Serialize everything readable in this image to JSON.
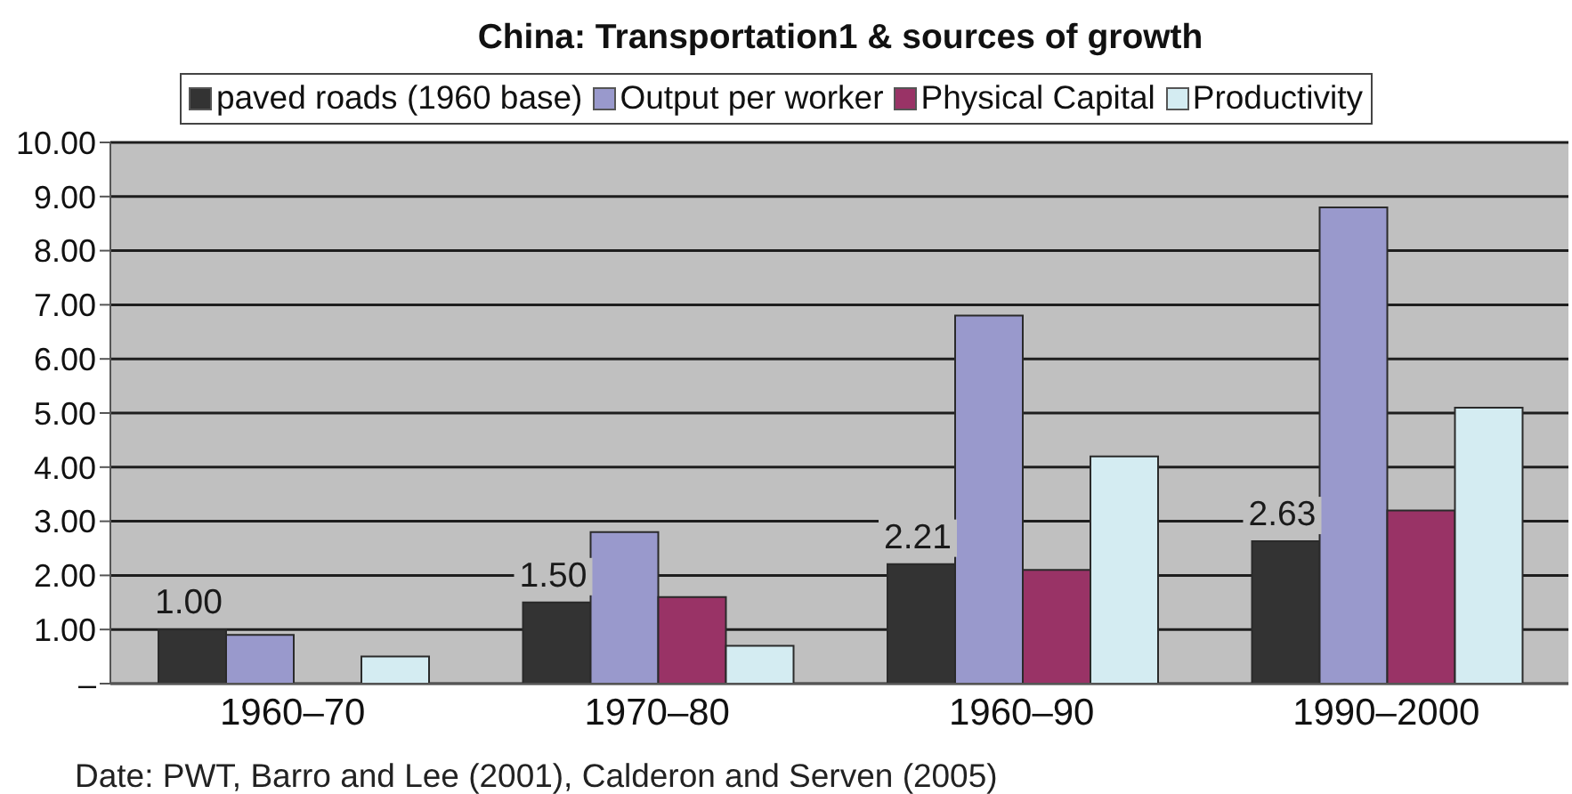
{
  "chart_data": {
    "type": "bar",
    "title": "China: Transportation1 & sources of growth",
    "categories": [
      "1960–70",
      "1970–80",
      "1960–90",
      "1990–2000"
    ],
    "series": [
      {
        "name": "paved roads (1960 base)",
        "color": "#333333",
        "values": [
          1.0,
          1.5,
          2.21,
          2.63
        ],
        "value_labels": [
          "1.00",
          "1.50",
          "2.21",
          "2.63"
        ]
      },
      {
        "name": "Output per worker",
        "color": "#9999cc",
        "values": [
          0.9,
          2.8,
          6.8,
          8.8
        ]
      },
      {
        "name": "Physical Capital",
        "color": "#993366",
        "values": [
          null,
          1.6,
          2.1,
          3.2
        ]
      },
      {
        "name": "Productivity",
        "color": "#d4ecf2",
        "values": [
          0.5,
          0.7,
          4.2,
          5.1
        ]
      }
    ],
    "ylim": [
      0,
      10
    ],
    "yticks": [
      {
        "value": 0,
        "label": "–"
      },
      {
        "value": 1,
        "label": "1.00"
      },
      {
        "value": 2,
        "label": "2.00"
      },
      {
        "value": 3,
        "label": "3.00"
      },
      {
        "value": 4,
        "label": "4.00"
      },
      {
        "value": 5,
        "label": "5.00"
      },
      {
        "value": 6,
        "label": "6.00"
      },
      {
        "value": 7,
        "label": "7.00"
      },
      {
        "value": 8,
        "label": "8.00"
      },
      {
        "value": 9,
        "label": "9.00"
      },
      {
        "value": 10,
        "label": "10.00"
      }
    ],
    "grid": "y",
    "legend": "top",
    "annotations": [
      "Date: PWT, Barro and Lee (2001), Calderon and Serven (2005)"
    ]
  }
}
